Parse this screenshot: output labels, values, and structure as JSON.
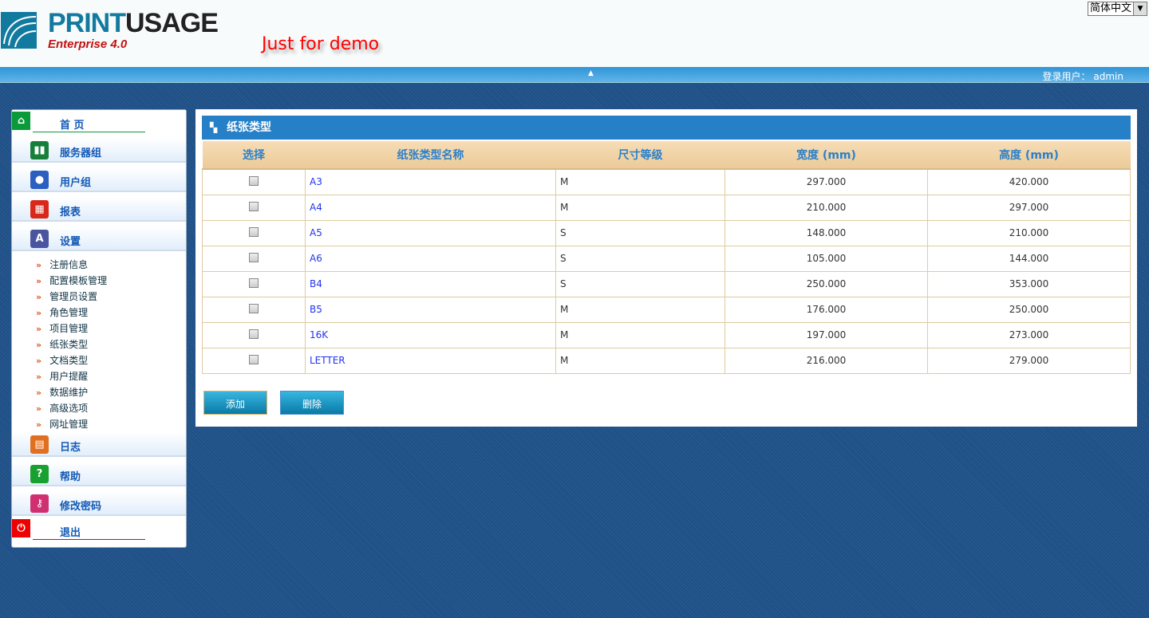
{
  "header": {
    "brand_a": "PRINT",
    "brand_b": "USAGE",
    "edition": "Enterprise 4.0",
    "demo_note": "Just for demo",
    "language": "简体中文",
    "user_label": "登录用户：",
    "user": "admin"
  },
  "sidebar": {
    "items": [
      {
        "label": "首 页",
        "icon": "home-icon"
      },
      {
        "label": "服务器组",
        "icon": "server-icon"
      },
      {
        "label": "用户组",
        "icon": "users-icon"
      },
      {
        "label": "报表",
        "icon": "report-icon"
      },
      {
        "label": "设置",
        "icon": "settings-icon"
      },
      {
        "label": "日志",
        "icon": "log-icon"
      },
      {
        "label": "帮助",
        "icon": "help-icon"
      },
      {
        "label": "修改密码",
        "icon": "key-icon"
      },
      {
        "label": "退出",
        "icon": "power-icon"
      }
    ],
    "settings_sub": [
      "注册信息",
      "配置模板管理",
      "管理员设置",
      "角色管理",
      "项目管理",
      "纸张类型",
      "文档类型",
      "用户提醒",
      "数据维护",
      "高级选项",
      "网址管理"
    ]
  },
  "main": {
    "title": "纸张类型",
    "columns": [
      "选择",
      "纸张类型名称",
      "尺寸等级",
      "宽度 (mm)",
      "高度 (mm)"
    ],
    "rows": [
      [
        "A3",
        "M",
        "297.000",
        "420.000"
      ],
      [
        "A4",
        "M",
        "210.000",
        "297.000"
      ],
      [
        "A5",
        "S",
        "148.000",
        "210.000"
      ],
      [
        "A6",
        "S",
        "105.000",
        "144.000"
      ],
      [
        "B4",
        "S",
        "250.000",
        "353.000"
      ],
      [
        "B5",
        "M",
        "176.000",
        "250.000"
      ],
      [
        "16K",
        "M",
        "197.000",
        "273.000"
      ],
      [
        "LETTER",
        "M",
        "216.000",
        "279.000"
      ]
    ],
    "add_label": "添加",
    "delete_label": "删除"
  }
}
